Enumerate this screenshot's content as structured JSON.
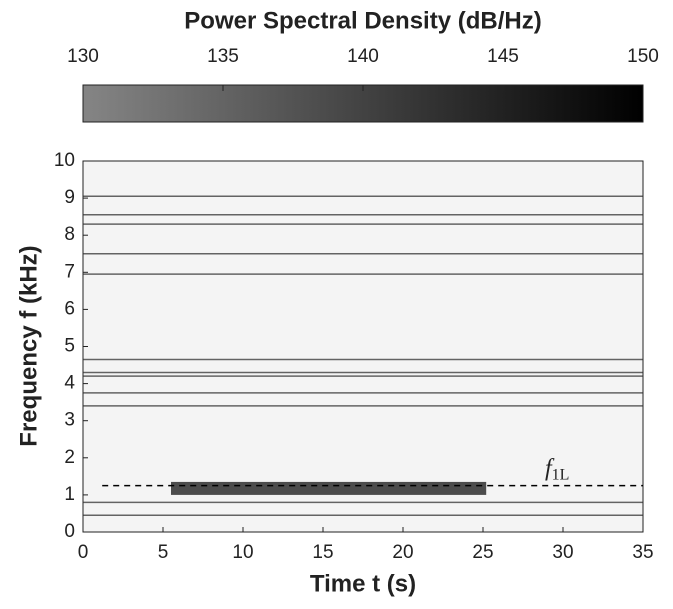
{
  "chart_data": {
    "type": "spectrogram",
    "colorbar": {
      "label": "Power Spectral Density (dB/Hz)",
      "lim": [
        130,
        150
      ],
      "ticks": [
        130,
        135,
        140,
        145,
        150
      ],
      "colors": [
        "#858585",
        "#000000"
      ]
    },
    "x_label": "Time t (s)",
    "y_label": "Frequency f (kHz)",
    "xlim": [
      0,
      35
    ],
    "xticks": [
      0,
      5,
      10,
      15,
      20,
      25,
      30,
      35
    ],
    "ylim": [
      0,
      10
    ],
    "yticks": [
      0,
      1,
      2,
      3,
      4,
      5,
      6,
      7,
      8,
      9,
      10
    ],
    "bands": [
      9.05,
      8.55,
      8.3,
      7.5,
      6.95,
      4.65,
      4.3,
      4.2,
      3.75,
      3.4,
      0.8,
      0.45
    ],
    "strong_region": {
      "t": [
        5.5,
        25.2
      ],
      "f": [
        1.0,
        1.35
      ]
    },
    "annotation": {
      "text": "f",
      "subscript": "1L",
      "value": 1.25,
      "t": [
        1.2,
        35
      ]
    }
  }
}
